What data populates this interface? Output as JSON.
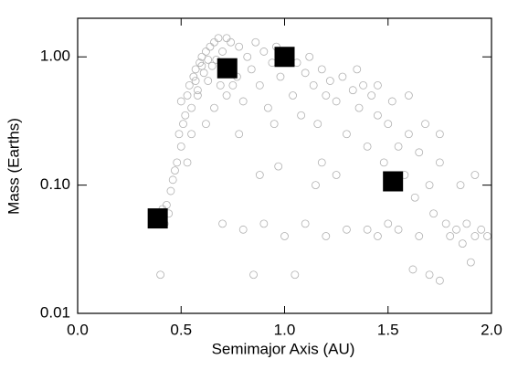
{
  "chart_data": {
    "type": "scatter",
    "xlabel": "Semimajor Axis (AU)",
    "ylabel": "Mass (Earths)",
    "xlim": [
      0,
      2
    ],
    "ylim": [
      0.01,
      2.0
    ],
    "ylog": true,
    "xticks": [
      {
        "value": 0,
        "label": "0.0"
      },
      {
        "value": 0.5,
        "label": "0.5"
      },
      {
        "value": 1,
        "label": "1.0"
      },
      {
        "value": 1.5,
        "label": "1.5"
      },
      {
        "value": 2,
        "label": "2.0"
      }
    ],
    "yticks": [
      {
        "value": 0.01,
        "label": "0.01"
      },
      {
        "value": 0.1,
        "label": "0.10"
      },
      {
        "value": 1,
        "label": "1.00"
      }
    ],
    "series": [
      {
        "color": "#b0b0b0",
        "marker": "circle",
        "x": [
          0.38,
          0.4,
          0.42,
          0.41,
          0.44,
          0.43,
          0.45,
          0.46,
          0.47,
          0.48,
          0.5,
          0.49,
          0.51,
          0.52,
          0.5,
          0.53,
          0.54,
          0.55,
          0.56,
          0.57,
          0.58,
          0.59,
          0.6,
          0.61,
          0.62,
          0.63,
          0.64,
          0.65,
          0.66,
          0.67,
          0.68,
          0.69,
          0.7,
          0.72,
          0.74,
          0.75,
          0.77,
          0.78,
          0.8,
          0.82,
          0.84,
          0.86,
          0.88,
          0.9,
          0.92,
          0.94,
          0.96,
          0.98,
          1.02,
          1.04,
          1.06,
          1.08,
          1.1,
          1.12,
          1.14,
          1.16,
          1.18,
          1.2,
          1.22,
          1.25,
          1.28,
          1.3,
          1.33,
          1.36,
          1.38,
          1.4,
          1.42,
          1.45,
          1.48,
          1.5,
          1.55,
          1.58,
          1.6,
          1.63,
          1.65,
          1.68,
          1.7,
          1.72,
          1.75,
          1.78,
          1.8,
          1.83,
          1.86,
          1.88,
          1.92,
          1.95,
          1.98,
          1.65,
          1.55,
          1.5,
          1.45,
          1.4,
          1.3,
          1.2,
          1.1,
          1.0,
          0.9,
          0.8,
          0.7,
          1.7,
          1.75,
          1.62,
          1.9,
          0.85,
          1.05,
          0.4,
          0.88,
          0.97,
          1.15,
          1.25,
          0.62,
          0.55,
          0.58,
          0.53,
          1.35,
          1.45,
          1.52,
          1.85,
          1.92,
          1.75,
          0.95,
          1.18,
          1.6,
          0.78,
          0.66,
          0.72,
          0.98,
          1.0,
          1.02,
          0.6,
          0.63,
          0.57,
          0.7,
          0.75
        ],
        "values": [
          0.06,
          0.055,
          0.05,
          0.065,
          0.06,
          0.07,
          0.09,
          0.11,
          0.13,
          0.15,
          0.2,
          0.25,
          0.3,
          0.35,
          0.45,
          0.5,
          0.6,
          0.4,
          0.7,
          0.8,
          0.55,
          0.9,
          1.0,
          0.75,
          1.1,
          0.65,
          1.2,
          0.85,
          1.3,
          0.95,
          1.4,
          0.6,
          1.1,
          0.5,
          1.3,
          0.9,
          0.7,
          1.2,
          0.45,
          1.0,
          0.8,
          1.3,
          0.6,
          1.1,
          0.4,
          0.9,
          1.2,
          0.7,
          1.1,
          0.5,
          0.9,
          0.35,
          0.75,
          1.0,
          0.6,
          0.3,
          0.8,
          0.5,
          0.65,
          0.45,
          0.7,
          0.25,
          0.55,
          0.4,
          0.6,
          0.2,
          0.5,
          0.35,
          0.15,
          0.3,
          0.2,
          0.12,
          0.25,
          0.08,
          0.18,
          0.3,
          0.1,
          0.06,
          0.15,
          0.05,
          0.04,
          0.045,
          0.035,
          0.05,
          0.04,
          0.045,
          0.04,
          0.04,
          0.045,
          0.05,
          0.04,
          0.045,
          0.045,
          0.04,
          0.05,
          0.04,
          0.05,
          0.045,
          0.05,
          0.02,
          0.018,
          0.022,
          0.025,
          0.02,
          0.02,
          0.02,
          0.12,
          0.14,
          0.1,
          0.12,
          0.3,
          0.25,
          0.5,
          0.15,
          0.8,
          0.6,
          0.45,
          0.1,
          0.12,
          0.25,
          0.3,
          0.15,
          0.5,
          0.25,
          0.4,
          1.4,
          1.0,
          0.95,
          0.9,
          0.85,
          0.95,
          0.65,
          0.8,
          0.6
        ]
      },
      {
        "color": "#000000",
        "marker": "square",
        "x": [
          0.387,
          0.723,
          1.0,
          1.524
        ],
        "values": [
          0.055,
          0.815,
          1.0,
          0.107
        ]
      }
    ]
  }
}
